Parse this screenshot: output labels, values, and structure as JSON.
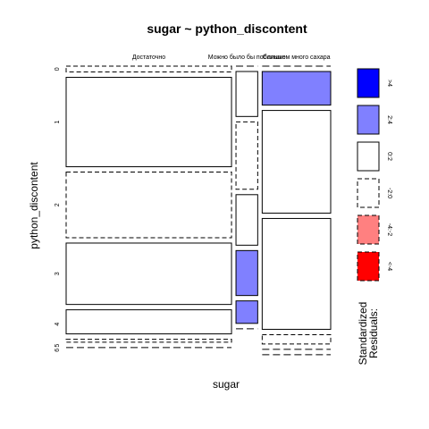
{
  "chart_data": {
    "type": "mosaic",
    "title": "sugar ~ python_discontent",
    "xlabel": "sugar",
    "ylabel": "python_discontent",
    "columns": [
      {
        "label": "Достаточно",
        "weight": 0.647
      },
      {
        "label": "Можно было бы побольше",
        "weight": 0.085
      },
      {
        "label": "Слишком много сахара",
        "weight": 0.268
      }
    ],
    "rows": [
      {
        "label": "0",
        "weight": 0.022
      },
      {
        "label": "1",
        "weight": 0.338
      },
      {
        "label": "2",
        "weight": 0.248
      },
      {
        "label": "3",
        "weight": 0.232
      },
      {
        "label": "4",
        "weight": 0.108
      },
      {
        "label": "5",
        "weight": 0.014
      },
      {
        "label": "6",
        "weight": 0.0
      }
    ],
    "residual_classes": [
      {
        "label": ">4",
        "color": "#0000ff",
        "dashed": false
      },
      {
        "label": "2:4",
        "color": "#8080ff",
        "dashed": false
      },
      {
        "label": "0:2",
        "color": "#ffffff",
        "dashed": false
      },
      {
        "label": "-2:0",
        "color": "#ffffff",
        "dashed": true
      },
      {
        "label": "-4:-2",
        "color": "#ff8080",
        "dashed": true
      },
      {
        "label": "<-4",
        "color": "#ff0000",
        "dashed": true
      }
    ],
    "cells": [
      {
        "col": 0,
        "row": 0,
        "weight": 0.022,
        "class": 3
      },
      {
        "col": 0,
        "row": 1,
        "weight": 0.338,
        "class": 2
      },
      {
        "col": 0,
        "row": 2,
        "weight": 0.248,
        "class": 3
      },
      {
        "col": 0,
        "row": 3,
        "weight": 0.232,
        "class": 2
      },
      {
        "col": 0,
        "row": 4,
        "weight": 0.091,
        "class": 2
      },
      {
        "col": 0,
        "row": 5,
        "weight": 0.011,
        "class": 3
      },
      {
        "col": 0,
        "row": 6,
        "weight": 0.0,
        "class": 3
      },
      {
        "col": 1,
        "row": 0,
        "weight": 0.0,
        "class": 3
      },
      {
        "col": 1,
        "row": 1,
        "weight": 0.17,
        "class": 2
      },
      {
        "col": 1,
        "row": 2,
        "weight": 0.255,
        "class": 3
      },
      {
        "col": 1,
        "row": 3,
        "weight": 0.191,
        "class": 2
      },
      {
        "col": 1,
        "row": 4,
        "weight": 0.17,
        "class": 1
      },
      {
        "col": 1,
        "row": 5,
        "weight": 0.085,
        "class": 1
      },
      {
        "col": 1,
        "row": 6,
        "weight": 0.0,
        "class": 3
      },
      {
        "col": 2,
        "row": 0,
        "weight": 0.0,
        "class": 3
      },
      {
        "col": 2,
        "row": 1,
        "weight": 0.127,
        "class": 1
      },
      {
        "col": 2,
        "row": 2,
        "weight": 0.388,
        "class": 2
      },
      {
        "col": 2,
        "row": 3,
        "weight": 0.419,
        "class": 2
      },
      {
        "col": 2,
        "row": 4,
        "weight": 0.035,
        "class": 3
      },
      {
        "col": 2,
        "row": 5,
        "weight": 0.0,
        "class": 3
      },
      {
        "col": 2,
        "row": 6,
        "weight": 0.0,
        "class": 3
      }
    ],
    "legend_title_line1": "Standardized",
    "legend_title_line2": "Residuals:"
  }
}
